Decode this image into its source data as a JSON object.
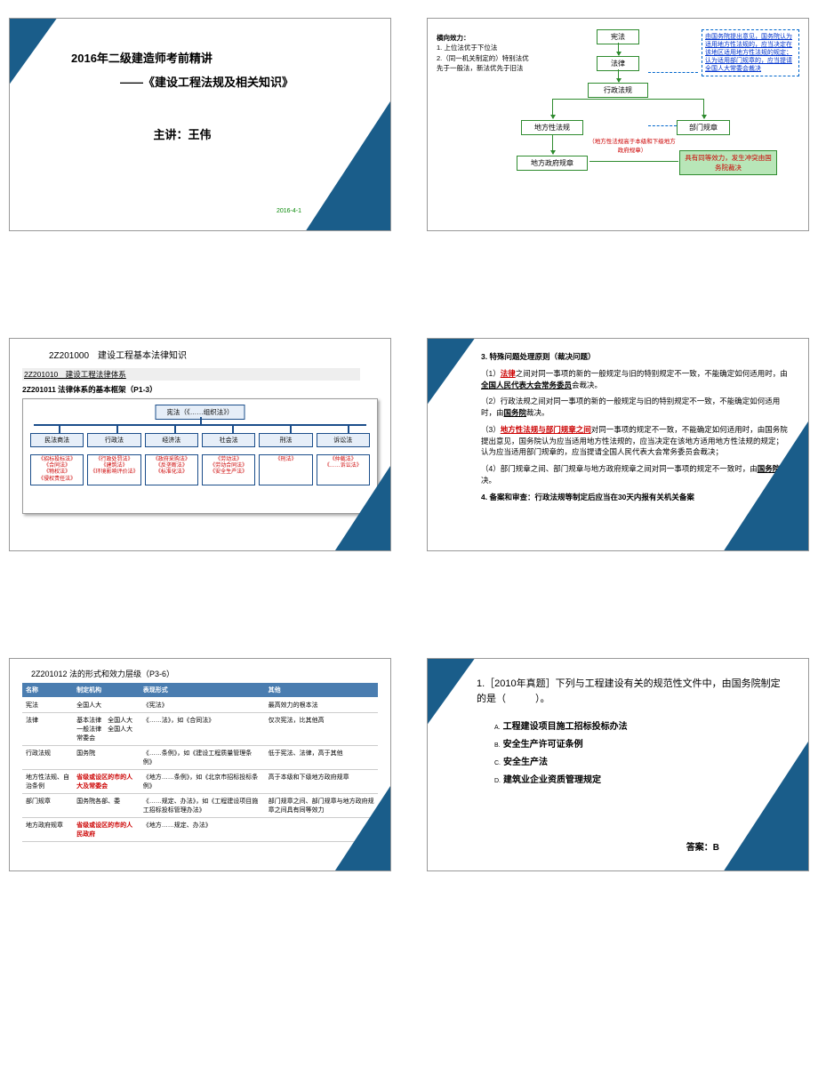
{
  "colors": {
    "triangle_outer": "#1a5d8a",
    "triangle_inner": "#3aa6d0",
    "green_border": "#2e8b2e",
    "blue_dash": "#0066cc",
    "red": "#c00000",
    "table_header": "#4a7db0"
  },
  "slide1": {
    "title": "2016年二级建造师考前精讲",
    "subtitle": "——《建设工程法规及相关知识》",
    "speaker": "主讲：王伟",
    "date": "2016-4-1"
  },
  "slide2": {
    "left_title": "横向效力：",
    "left_1": "1. 上位法优于下位法",
    "left_2": "2.（同一机关制定的）特别法优先于一般法，新法优先于旧法",
    "boxes": {
      "xf": "宪法",
      "fl": "法律",
      "xzfg": "行政法规",
      "dfxfg": "地方性法规",
      "bmgz": "部门规章",
      "dfzfgz": "地方政府规章"
    },
    "mid_note": "（地方性法规高于本级和下级地方政府规章）",
    "right_note": "由国务院提出意见，国务院认为适用地方性法规的，应当决定在该地区适用地方性法规的规定；认为适用部门规章的，应当提请全国人大常委会裁决",
    "green_note": "具有同等效力，发生冲突由国务院裁决"
  },
  "slide3": {
    "h1": "2Z201000　建设工程基本法律知识",
    "sec1": "2Z201010　建设工程法律体系",
    "sec2": "2Z201011 法律体系的基本框架（P1-3）",
    "top": "宪法（《……组织法》）",
    "cats": [
      "民法商法",
      "行政法",
      "经济法",
      "社会法",
      "刑法",
      "诉讼法"
    ],
    "items": [
      "《招标投标法》\n《合同法》\n《物权法》\n《侵权责任法》",
      "《行政处罚法》\n《建筑法》\n《环境影响评价法》",
      "《政府采购法》\n《反垄断法》\n《标准化法》",
      "《劳动法》\n《劳动合同法》\n《安全生产法》",
      "《刑法》",
      "《仲裁法》\n《……诉讼法》"
    ]
  },
  "slide4": {
    "h": "3. 特殊问题处理原则（裁决问题）",
    "p1a": "（1）",
    "p1_red": "法律",
    "p1b": "之间对同一事项的新的一般规定与旧的特别规定不一致，不能确定如何适用时，由",
    "p1_u": "全国人民代表大会常务委员",
    "p1c": "会裁决。",
    "p2": "（2）行政法规之间对同一事项的新的一般规定与旧的特别规定不一致，不能确定如何适用时，由",
    "p2_u": "国务院",
    "p2b": "裁决。",
    "p3a": "（3）",
    "p3_red": "地方性法规与部门规章之间",
    "p3b": "对同一事项的规定不一致，不能确定如何适用时，由国务院提出意见，国务院认为应当适用地方性法规的，应当决定在该地方适用地方性法规的规定；认为应当适用部门规章的，应当提请全国人民代表大会常务委员会裁决；",
    "p4": "（4）部门规章之间、部门规章与地方政府规章之间对同一事项的规定不一致时，由",
    "p4_u": "国务院",
    "p4b": "裁决。",
    "p5": "4. 备案和审查：行政法规等制定后应当在30天内报有关机关备案"
  },
  "slide5": {
    "h": "2Z201012 法的形式和效力层级（P3-6）",
    "headers": [
      "名称",
      "制定机构",
      "表现形式",
      "其他"
    ],
    "rows": [
      [
        "宪法",
        "全国人大",
        "《宪法》",
        "最高效力的根本法"
      ],
      [
        "法律",
        "基本法律　全国人大\n一般法律　全国人大常委会",
        "《……法》，如《合同法》",
        "仅次宪法，比其他高"
      ],
      [
        "行政法规",
        "国务院",
        "《……条例》，如《建设工程质量管理条例》",
        "低于宪法、法律，高于其他"
      ],
      [
        "地方性法规、自治条例",
        "",
        "《地方……条例》，如《北京市招标投标条例》",
        "高于本级和下级地方政府规章"
      ],
      [
        "部门规章",
        "国务院各部、委",
        "《……规定、办法》，如《工程建设项目施工招标投标管理办法》",
        "部门规章之间、部门规章与地方政府规章之间具有同等效力"
      ],
      [
        "地方政府规章",
        "",
        "《地方……规定、办法》",
        ""
      ]
    ],
    "row3_red": "省级或设区的市的人大及常委会",
    "row5_red": "省级或设区的市的人民政府"
  },
  "slide6": {
    "q": "1.［2010年真题］下列与工程建设有关的规范性文件中，由国务院制定的是（　　　）。",
    "opts": [
      {
        "l": "A.",
        "t": "工程建设项目施工招标投标办法"
      },
      {
        "l": "B.",
        "t": "安全生产许可证条例"
      },
      {
        "l": "C.",
        "t": "安全生产法"
      },
      {
        "l": "D.",
        "t": "建筑业企业资质管理规定"
      }
    ],
    "ans": "答案：B"
  }
}
